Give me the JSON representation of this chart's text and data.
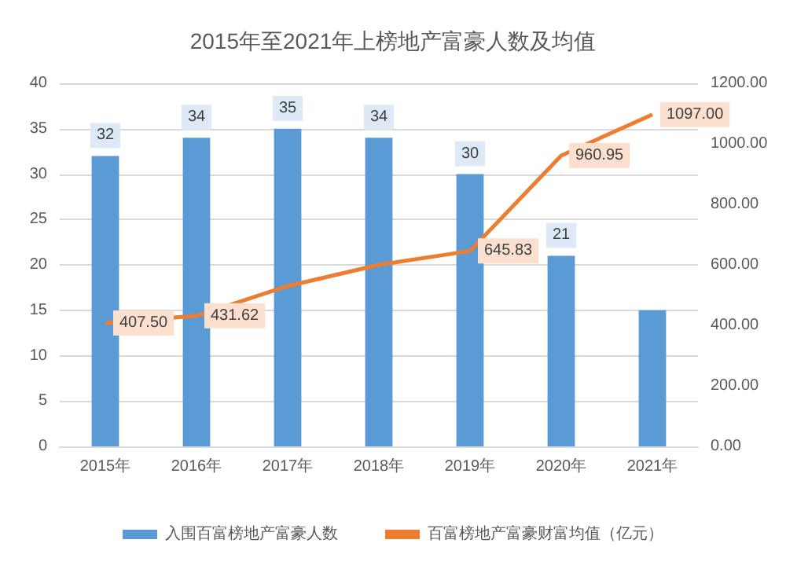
{
  "chart_data": {
    "type": "bar",
    "title": "2015年至2021年上榜地产富豪人数及均值",
    "categories": [
      "2015年",
      "2016年",
      "2017年",
      "2018年",
      "2019年",
      "2020年",
      "2021年"
    ],
    "series": [
      {
        "name": "入围百富榜地产富豪人数",
        "color": "#5b9bd5",
        "values": [
          32,
          34,
          35,
          34,
          30,
          21,
          15
        ],
        "value_labels": [
          "32",
          "34",
          "35",
          "34",
          "30",
          "21",
          null
        ]
      },
      {
        "name": "百富榜地产富豪财富均值（亿元）",
        "type": "line",
        "axis": "y2",
        "color": "#ed7d31",
        "values": [
          407.5,
          431.62,
          530,
          600,
          645.83,
          960.95,
          1097
        ],
        "value_labels": [
          "407.50",
          "431.62",
          null,
          null,
          "645.83",
          "960.95",
          "1097.00"
        ],
        "marker": "none"
      }
    ],
    "ylim": [
      0,
      40
    ],
    "yticks": [
      0,
      5,
      10,
      15,
      20,
      25,
      30,
      35,
      40
    ],
    "y2lim": [
      0,
      1200
    ],
    "y2ticks": [
      {
        "value": 0,
        "label": "0.00"
      },
      {
        "value": 200,
        "label": "200.00"
      },
      {
        "value": 400,
        "label": "400.00"
      },
      {
        "value": 600,
        "label": "600.00"
      },
      {
        "value": 800,
        "label": "800.00"
      },
      {
        "value": 1000,
        "label": "1000.00"
      },
      {
        "value": 1200,
        "label": "1200.00"
      }
    ],
    "grid": "y",
    "legend": "bottom"
  }
}
